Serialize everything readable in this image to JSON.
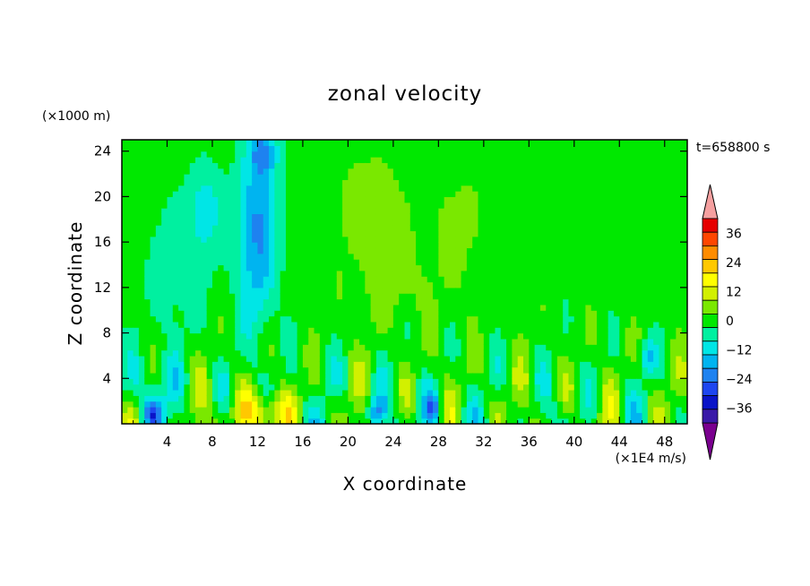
{
  "chart_data": {
    "type": "heatmap",
    "title": "zonal velocity",
    "xlabel": "X coordinate",
    "ylabel": "Z coordinate",
    "x_unit": "(×1E4 m/s)",
    "y_unit": "(×1000 m)",
    "time_label": "t=658800 s",
    "xlim": [
      0,
      50
    ],
    "ylim": [
      0,
      25
    ],
    "x_ticks": [
      4,
      8,
      12,
      16,
      20,
      24,
      28,
      32,
      36,
      40,
      44,
      48
    ],
    "y_ticks": [
      4,
      8,
      12,
      16,
      20,
      24
    ],
    "colorbar": {
      "ticks": [
        36,
        24,
        12,
        0,
        -12,
        -24,
        -36
      ],
      "levels": [
        -42,
        -36,
        -30,
        -24,
        -18,
        -12,
        -6,
        0,
        6,
        12,
        18,
        24,
        30,
        36,
        42
      ],
      "colors": [
        "#7a008f",
        "#3a1aa8",
        "#0a14c8",
        "#1e46f0",
        "#1e82f0",
        "#00b4f0",
        "#00e6e6",
        "#00f0a0",
        "#00e800",
        "#7ae800",
        "#d2f000",
        "#ffff00",
        "#ffc800",
        "#ff8c00",
        "#ff4600",
        "#e60000",
        "#f5a0a0"
      ]
    },
    "field_description_levels": {
      "upper_band_z_12_to_25": "mostly 0 to 10, with a negative column (-10 to -25) near x=10-14 and weak negative near x=4-8",
      "mid_band_z_4_to_12": "alternating cells from -15 to +15",
      "lower_band_z_0_to_4": "strong alternation from -30 to +20, positive maximum near x=12 at z=1"
    }
  }
}
